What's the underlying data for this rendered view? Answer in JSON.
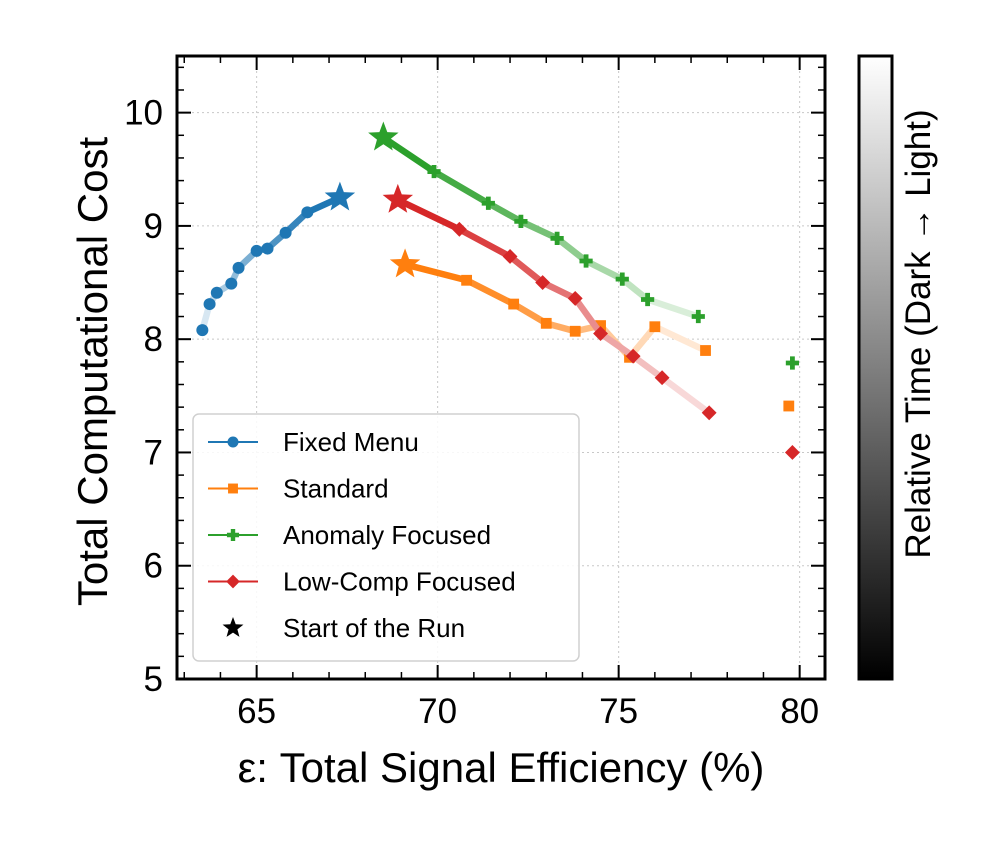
{
  "chart_data": {
    "type": "line",
    "title": "",
    "xlabel": "ε: Total Signal Efficiency (%)",
    "ylabel": "Total Computational Cost",
    "xlim": [
      62.8,
      80.7
    ],
    "ylim": [
      5,
      10.5
    ],
    "xticks": [
      "65",
      "70",
      "75",
      "80"
    ],
    "yticks": [
      "5",
      "6",
      "7",
      "8",
      "9",
      "10"
    ],
    "grid": true,
    "legend_position": "lower-left",
    "colorbar_label": "Relative Time (Dark → Light)",
    "start_marker_label": "Start of the Run",
    "series": [
      {
        "name": "Fixed Menu",
        "color": "#1f77b4",
        "marker": "circle",
        "x": [
          67.3,
          66.4,
          65.8,
          65.3,
          65.0,
          64.5,
          64.3,
          63.9,
          63.7,
          63.5
        ],
        "y": [
          9.25,
          9.12,
          8.94,
          8.8,
          8.78,
          8.63,
          8.49,
          8.41,
          8.31,
          8.08
        ]
      },
      {
        "name": "Standard",
        "color": "#ff7f0e",
        "marker": "square",
        "x": [
          69.1,
          70.8,
          72.1,
          73.0,
          73.8,
          74.5,
          75.3,
          76.0,
          77.4
        ],
        "y": [
          8.66,
          8.52,
          8.31,
          8.14,
          8.07,
          8.12,
          7.84,
          8.11,
          7.9
        ],
        "outlier": {
          "x": 79.7,
          "y": 7.41
        }
      },
      {
        "name": "Anomaly Focused",
        "color": "#2ca02c",
        "marker": "plus",
        "x": [
          68.5,
          69.9,
          71.4,
          72.3,
          73.3,
          74.1,
          75.1,
          75.8,
          77.2
        ],
        "y": [
          9.78,
          9.48,
          9.2,
          9.04,
          8.89,
          8.69,
          8.53,
          8.35,
          8.2
        ],
        "outlier": {
          "x": 79.8,
          "y": 7.79
        }
      },
      {
        "name": "Low-Comp Focused",
        "color": "#d62728",
        "marker": "diamond",
        "x": [
          68.9,
          70.6,
          72.0,
          72.9,
          73.8,
          74.5,
          75.4,
          76.2,
          77.5
        ],
        "y": [
          9.23,
          8.97,
          8.73,
          8.5,
          8.36,
          8.05,
          7.85,
          7.66,
          7.35
        ],
        "outlier": {
          "x": 79.8,
          "y": 7.0
        }
      }
    ]
  }
}
